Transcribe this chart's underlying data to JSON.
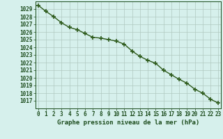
{
  "x_values": [
    0,
    1,
    2,
    3,
    4,
    5,
    6,
    7,
    8,
    9,
    10,
    11,
    12,
    13,
    14,
    15,
    16,
    17,
    18,
    19,
    20,
    21,
    22,
    23
  ],
  "y_values": [
    1029.5,
    1028.7,
    1028.0,
    1027.2,
    1026.6,
    1026.3,
    1025.8,
    1025.3,
    1025.2,
    1025.0,
    1024.8,
    1024.4,
    1023.5,
    1022.8,
    1022.3,
    1021.9,
    1021.0,
    1020.4,
    1019.8,
    1019.3,
    1018.5,
    1018.0,
    1017.2,
    1016.7
  ],
  "line_color": "#2d5a1b",
  "marker": "+",
  "marker_size": 4,
  "marker_lw": 1.2,
  "bg_color": "#d6f0ec",
  "grid_color": "#b0c8c0",
  "text_color": "#1a4a1a",
  "xlabel": "Graphe pression niveau de la mer (hPa)",
  "ylim_min": 1016.0,
  "ylim_max": 1030.0,
  "xlim_min": -0.3,
  "xlim_max": 23.3,
  "ytick_min": 1017,
  "ytick_max": 1029,
  "xtick_labels": [
    "0",
    "1",
    "2",
    "3",
    "4",
    "5",
    "6",
    "7",
    "8",
    "9",
    "10",
    "11",
    "12",
    "13",
    "14",
    "15",
    "16",
    "17",
    "18",
    "19",
    "20",
    "21",
    "22",
    "23"
  ],
  "xlabel_fontsize": 6.5,
  "tick_fontsize": 5.5,
  "line_width": 1.0
}
